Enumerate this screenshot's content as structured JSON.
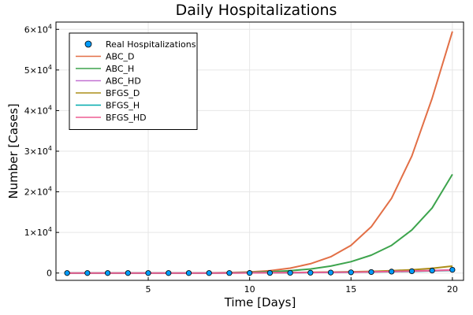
{
  "chart_data": {
    "type": "line",
    "title": "Daily Hospitalizations",
    "xlabel": "Time [Days]",
    "ylabel": "Number [Cases]",
    "xlim": [
      0.45,
      20.55
    ],
    "ylim": [
      -1800,
      61800
    ],
    "xticks": [
      5,
      10,
      15,
      20
    ],
    "yticks": [
      0,
      10000,
      20000,
      30000,
      40000,
      50000,
      60000
    ],
    "ytick_labels": [
      {
        "value": 0,
        "base": "0",
        "exp": ""
      },
      {
        "value": 10000,
        "base": "1×10",
        "exp": "4"
      },
      {
        "value": 20000,
        "base": "2×10",
        "exp": "4"
      },
      {
        "value": 30000,
        "base": "3×10",
        "exp": "4"
      },
      {
        "value": 40000,
        "base": "4×10",
        "exp": "4"
      },
      {
        "value": 50000,
        "base": "5×10",
        "exp": "4"
      },
      {
        "value": 60000,
        "base": "6×10",
        "exp": "4"
      }
    ],
    "grid": true,
    "legend_position": "top-left",
    "x": [
      1,
      2,
      3,
      4,
      5,
      6,
      7,
      8,
      9,
      10,
      11,
      12,
      13,
      14,
      15,
      16,
      17,
      18,
      19,
      20
    ],
    "series": [
      {
        "name": "Real Hospitalizations",
        "kind": "scatter",
        "color": "#009af9",
        "values": [
          0,
          0,
          0,
          0,
          0,
          0,
          0,
          0,
          10,
          20,
          30,
          50,
          80,
          120,
          180,
          250,
          350,
          450,
          600,
          800
        ]
      },
      {
        "name": "ABC_D",
        "kind": "line",
        "color": "#e26f46",
        "values": [
          0,
          0,
          0,
          0,
          0,
          0,
          20,
          50,
          110,
          250,
          560,
          1200,
          2300,
          4000,
          6800,
          11400,
          18400,
          28800,
          43000,
          59500
        ]
      },
      {
        "name": "ABC_H",
        "kind": "line",
        "color": "#3da44d",
        "values": [
          0,
          0,
          0,
          0,
          0,
          0,
          10,
          30,
          70,
          150,
          310,
          580,
          1000,
          1700,
          2800,
          4400,
          6800,
          10600,
          16000,
          24300
        ]
      },
      {
        "name": "ABC_HD",
        "kind": "line",
        "color": "#c271d2",
        "values": [
          0,
          0,
          0,
          0,
          0,
          0,
          0,
          10,
          20,
          40,
          70,
          100,
          140,
          190,
          250,
          320,
          400,
          500,
          620,
          750
        ]
      },
      {
        "name": "BFGS_D",
        "kind": "line",
        "color": "#ac8d18",
        "values": [
          0,
          0,
          0,
          0,
          0,
          0,
          0,
          10,
          30,
          50,
          80,
          120,
          170,
          230,
          310,
          420,
          580,
          800,
          1150,
          1700
        ]
      },
      {
        "name": "BFGS_H",
        "kind": "line",
        "color": "#00a9ad",
        "values": [
          0,
          0,
          0,
          0,
          0,
          0,
          0,
          10,
          20,
          35,
          55,
          80,
          110,
          150,
          200,
          260,
          330,
          420,
          520,
          650
        ]
      },
      {
        "name": "BFGS_HD",
        "kind": "line",
        "color": "#ed5d92",
        "values": [
          0,
          0,
          0,
          0,
          0,
          0,
          0,
          10,
          20,
          40,
          60,
          90,
          130,
          170,
          220,
          290,
          370,
          470,
          580,
          720
        ]
      }
    ]
  }
}
